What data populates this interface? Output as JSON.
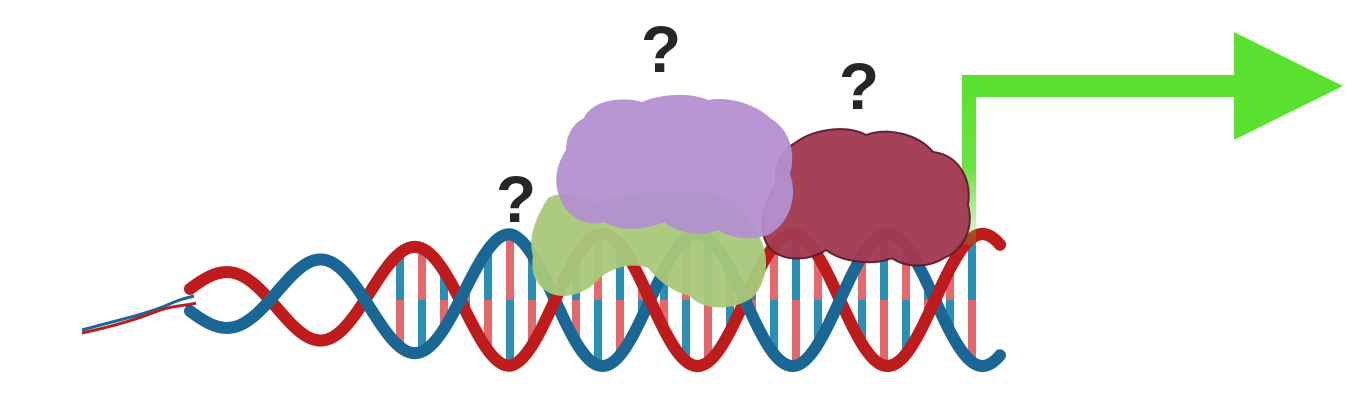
{
  "colors": {
    "background": "#ffffff",
    "strand_blue": "#1a6796",
    "strand_red": "#be1c1c",
    "base_blue": "#2b8fb5",
    "base_red": "#e2686b",
    "arrow_green": "#5ae02e",
    "protein_purple": "#b48fd0",
    "protein_green": "#a9c97a",
    "protein_maroon": "#a23a52",
    "question_mark": "#262626"
  },
  "labels": {
    "q_left": "?",
    "q_top": "?",
    "q_right": "?"
  }
}
